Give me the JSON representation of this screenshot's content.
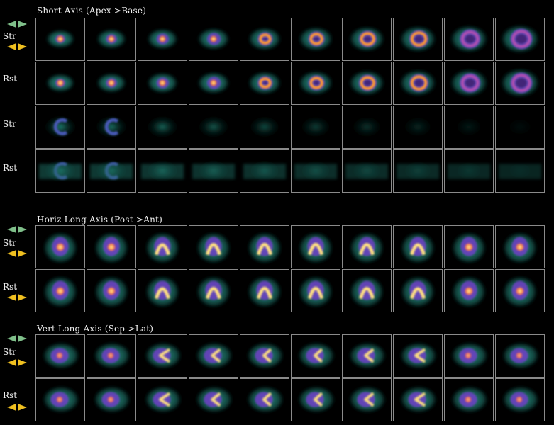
{
  "panels": [
    {
      "title": "Short Axis (Apex->Base)",
      "group_arrow_color": "#7fbf8a",
      "rows": [
        {
          "label": "Str",
          "arrow_color": "#f0c020",
          "kind": "sa"
        },
        {
          "label": "Rst",
          "arrow_color": "",
          "kind": "sa"
        },
        {
          "label": "Str",
          "arrow_color": "",
          "kind": "sa2"
        },
        {
          "label": "Rst",
          "arrow_color": "",
          "kind": "sa2"
        }
      ]
    },
    {
      "title": "Horiz Long Axis (Post->Ant)",
      "group_arrow_color": "#7fbf8a",
      "rows": [
        {
          "label": "Str",
          "arrow_color": "#f0c020",
          "kind": "hla"
        },
        {
          "label": "Rst",
          "arrow_color": "#f0c020",
          "kind": "hla"
        }
      ]
    },
    {
      "title": "Vert Long Axis (Sep->Lat)",
      "group_arrow_color": "#7fbf8a",
      "rows": [
        {
          "label": "Str",
          "arrow_color": "#f0c020",
          "kind": "vla"
        },
        {
          "label": "Rst",
          "arrow_color": "#f0c020",
          "kind": "vla"
        }
      ]
    }
  ],
  "colors": {
    "green_arrow": "#7fbf8a",
    "yellow_arrow": "#f0c020",
    "grid_border": "#8a8a8a"
  }
}
